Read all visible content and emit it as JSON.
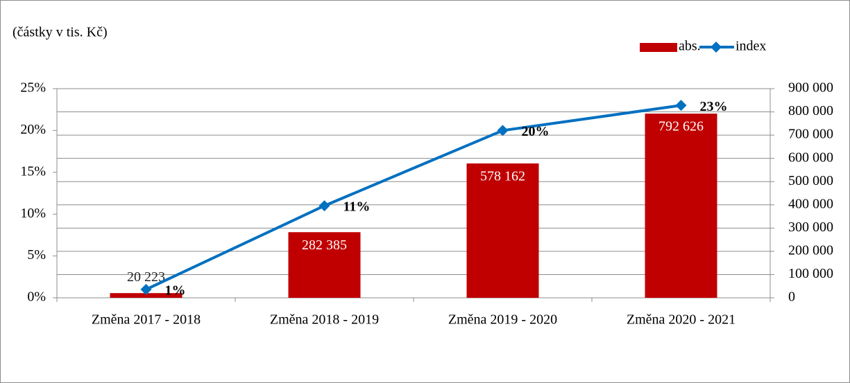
{
  "chart_data": {
    "type": "combo",
    "title": "(částky v tis. Kč)",
    "categories": [
      "Změna 2017 - 2018",
      "Změna 2018 - 2019",
      "Změna 2019 - 2020",
      "Změna 2020 - 2021"
    ],
    "series": [
      {
        "name": "abs.",
        "type": "bar",
        "axis": "y2",
        "color": "#c00000",
        "values": [
          20223,
          282385,
          578162,
          792626
        ],
        "value_labels": [
          "20 223",
          "282 385",
          "578 162",
          "792 626"
        ]
      },
      {
        "name": "index",
        "type": "line",
        "axis": "y",
        "color": "#0070c0",
        "values": [
          1,
          11,
          20,
          23
        ],
        "value_labels": [
          "1%",
          "11%",
          "20%",
          "23%"
        ]
      }
    ],
    "ylim": [
      0,
      25
    ],
    "yticks": [
      {
        "value": 0,
        "label": "0%"
      },
      {
        "value": 5,
        "label": "5%"
      },
      {
        "value": 10,
        "label": "10%"
      },
      {
        "value": 15,
        "label": "15%"
      },
      {
        "value": 20,
        "label": "20%"
      },
      {
        "value": 25,
        "label": "25%"
      }
    ],
    "y2lim": [
      0,
      900000
    ],
    "y2ticks": [
      0,
      {
        "value": 100000,
        "label": "100 000"
      },
      {
        "value": 200000,
        "label": "200 000"
      },
      {
        "value": 300000,
        "label": "300 000"
      },
      {
        "value": 400000,
        "label": "400 000"
      },
      {
        "value": 500000,
        "label": "500 000"
      },
      {
        "value": 600000,
        "label": "600 000"
      },
      {
        "value": 700000,
        "label": "700 000"
      },
      {
        "value": 800000,
        "label": "800 000"
      },
      {
        "value": 900000,
        "label": "900 000"
      }
    ],
    "grid": true,
    "legend": "top-right"
  }
}
